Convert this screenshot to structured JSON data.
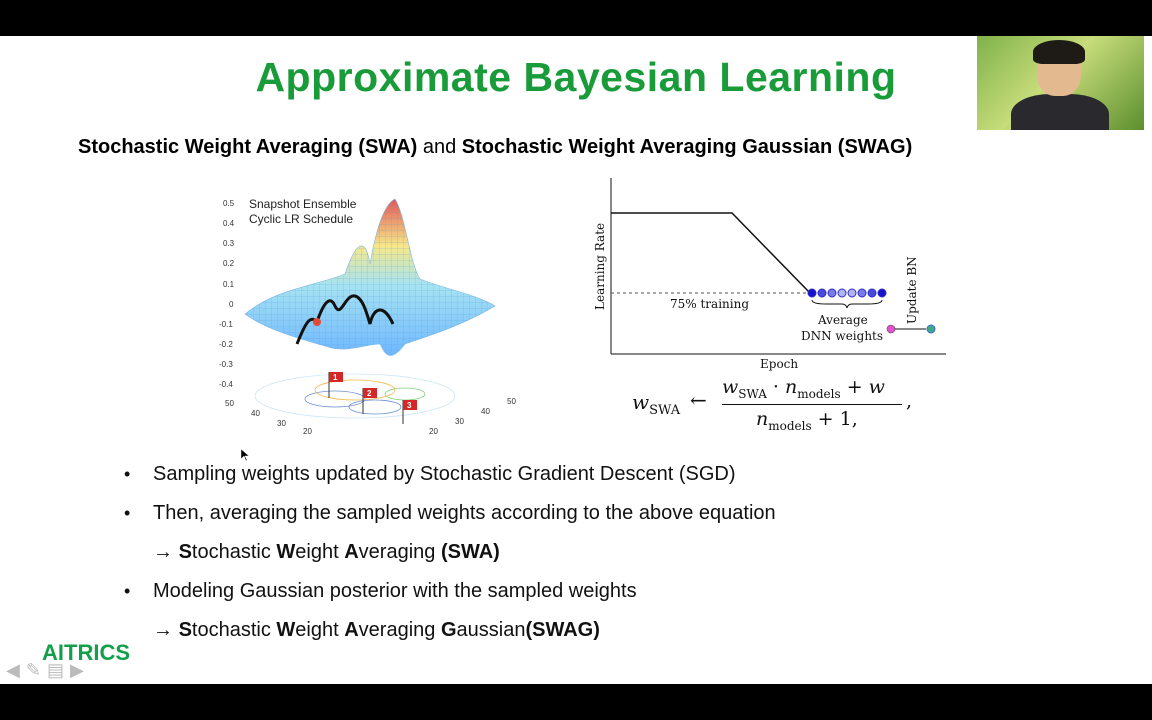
{
  "slide": {
    "title": "Approximate Bayesian Learning",
    "subtitle": {
      "part1": "Stochastic Weight Averaging (SWA)",
      "and": " and ",
      "part2": "Stochastic Weight Averaging Gaussian (SWAG)"
    },
    "left_figure": {
      "legend_line1": "Snapshot Ensemble",
      "legend_line2": "Cyclic LR Schedule",
      "z_ticks": [
        "0.5",
        "0.4",
        "0.3",
        "0.2",
        "0.1",
        "0",
        "-0.1",
        "-0.2",
        "-0.3",
        "-0.4"
      ],
      "x_ticks": [
        "50",
        "40",
        "30",
        "20"
      ],
      "y_ticks": [
        "20",
        "30",
        "40",
        "50"
      ],
      "flags": [
        "1",
        "2",
        "3"
      ]
    },
    "right_figure": {
      "ylabel": "Learning Rate",
      "xlabel": "Epoch",
      "training_label": "75% training",
      "average_label_line1": "Average",
      "average_label_line2": "DNN weights",
      "update_label": "Update BN"
    },
    "equation": {
      "lhs": "w",
      "lhs_sub": "SWA",
      "arrow": "←",
      "num_w": "w",
      "num_w_sub": "SWA",
      "num_dot": " · ",
      "num_n": "n",
      "num_n_sub": "models",
      "num_plus": " + w",
      "den_n": "n",
      "den_n_sub": "models",
      "den_plus": " + 1,",
      "trailing": ","
    },
    "bullets": [
      {
        "text": "Sampling weights updated by Stochastic Gradient Descent (SGD)"
      },
      {
        "text": "Then, averaging the sampled weights according to the above equation"
      },
      {
        "text": "Modeling Gaussian posterior with the sampled weights"
      }
    ],
    "sub_swa": {
      "arrow": "→ ",
      "s": "S",
      "s_rest": "tochastic ",
      "w": "W",
      "w_rest": "eight ",
      "a": "A",
      "a_rest": "veraging ",
      "abbr": "(SWA)"
    },
    "sub_swag": {
      "arrow": "→ ",
      "s": "S",
      "s_rest": "tochastic ",
      "w": "W",
      "w_rest": "eight ",
      "a": "A",
      "a_rest": "veraging ",
      "g": "G",
      "g_rest": "aussian",
      "abbr": "(SWAG)"
    },
    "logo": "AITRICS",
    "colors": {
      "title": "#1a9b3a",
      "logo": "#14a04a"
    }
  }
}
